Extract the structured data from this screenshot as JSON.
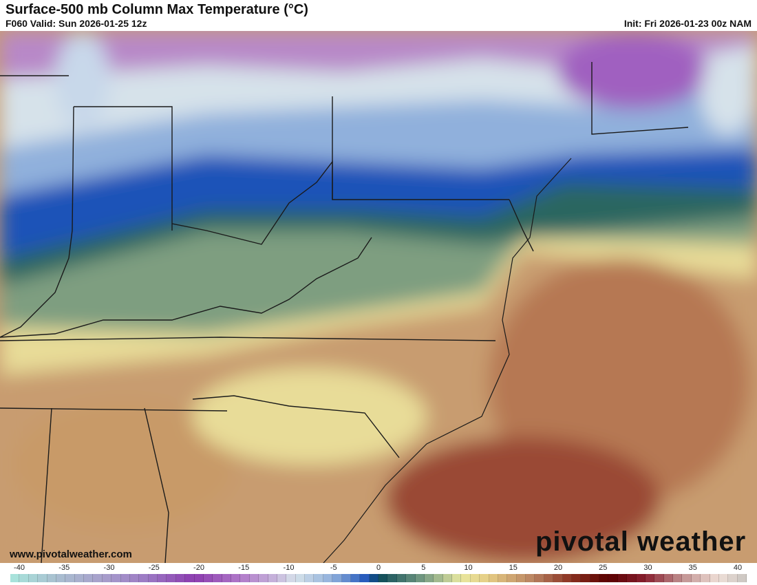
{
  "header": {
    "title": "Surface-500 mb Column Max Temperature (°C)",
    "valid": "F060 Valid: Sun 2026-01-25 12z",
    "init": "Init: Fri 2026-01-23 00z NAM"
  },
  "watermark": {
    "site": "www.pivotalweather.com",
    "logo": "pivotal weather"
  },
  "colorbar": {
    "min": -40,
    "max": 40,
    "tick_labels": [
      "-40",
      "-35",
      "-30",
      "-25",
      "-20",
      "-15",
      "-10",
      "-5",
      "0",
      "5",
      "10",
      "15",
      "20",
      "25",
      "30",
      "35",
      "40"
    ],
    "color_stops": [
      [
        -40,
        "#a8e6dc"
      ],
      [
        -35,
        "#a9bfd0"
      ],
      [
        -30,
        "#a8a0cc"
      ],
      [
        -25,
        "#9c78c4"
      ],
      [
        -20,
        "#8c3cb0"
      ],
      [
        -15,
        "#b078c8"
      ],
      [
        -11,
        "#c8b8dc"
      ],
      [
        -9,
        "#d6e2ea"
      ],
      [
        -5,
        "#90b0dc"
      ],
      [
        -1,
        "#1a50b8"
      ],
      [
        0,
        "#0a4a58"
      ],
      [
        5,
        "#7a9e84"
      ],
      [
        9,
        "#e8e8a0"
      ],
      [
        12,
        "#e6cc84"
      ],
      [
        17,
        "#b88060"
      ],
      [
        21,
        "#8a3020"
      ],
      [
        25,
        "#5a0000"
      ],
      [
        29,
        "#8a2030"
      ],
      [
        33,
        "#c09090"
      ],
      [
        37,
        "#f0e0d8"
      ],
      [
        40,
        "#c8c4c0"
      ]
    ]
  }
}
